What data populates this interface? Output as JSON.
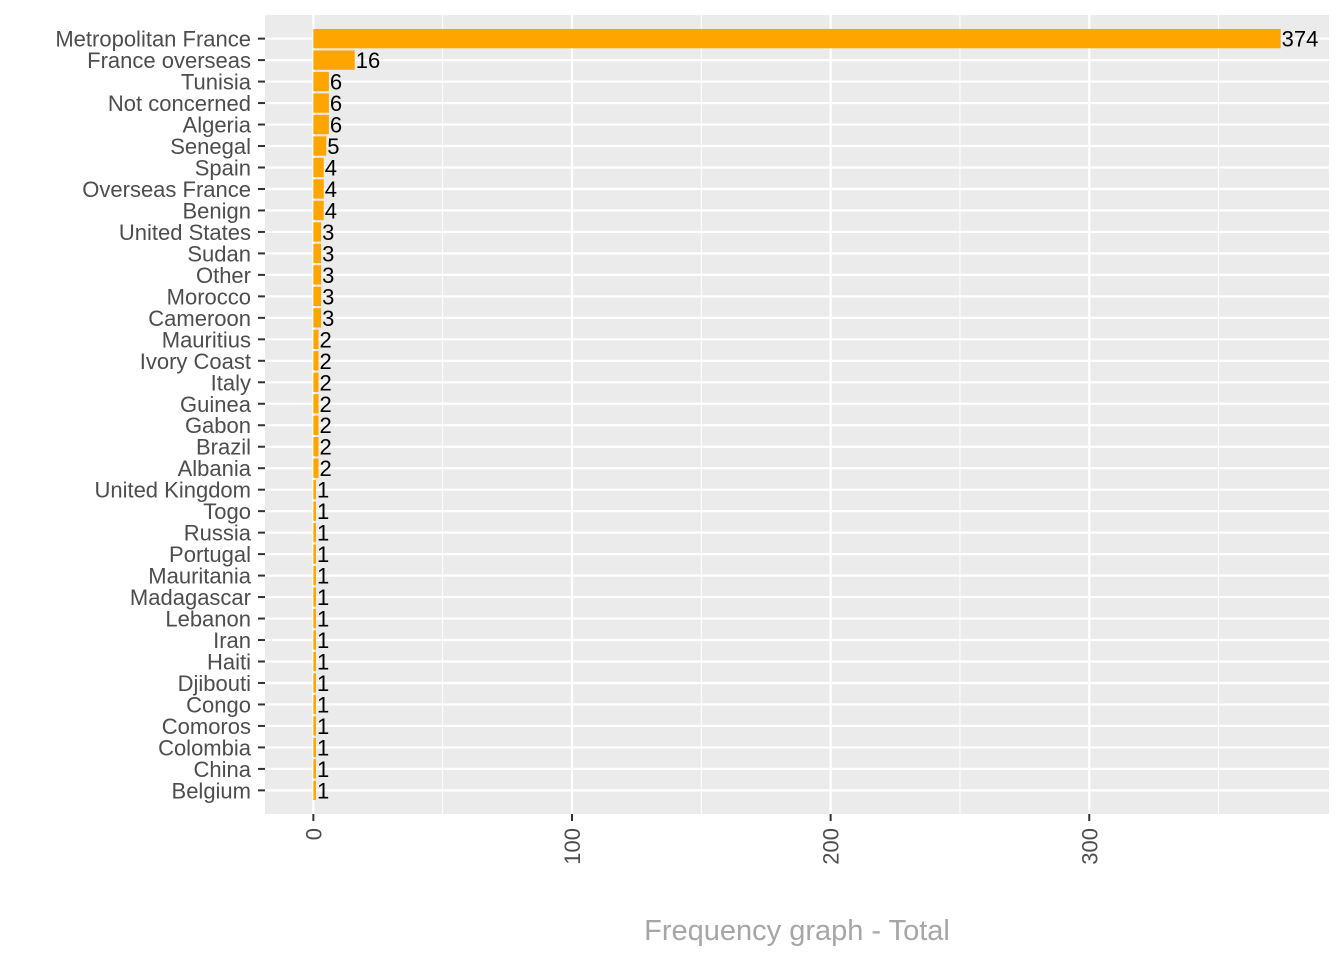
{
  "chart_data": {
    "type": "bar",
    "orientation": "horizontal",
    "title": "",
    "xlabel": "Frequency graph - Total",
    "ylabel": "",
    "categories": [
      "Metropolitan France",
      "France overseas",
      "Tunisia",
      "Not concerned",
      "Algeria",
      "Senegal",
      "Spain",
      "Overseas France",
      "Benign",
      "United States",
      "Sudan",
      "Other",
      "Morocco",
      "Cameroon",
      "Mauritius",
      "Ivory Coast",
      "Italy",
      "Guinea",
      "Gabon",
      "Brazil",
      "Albania",
      "United Kingdom",
      "Togo",
      "Russia",
      "Portugal",
      "Mauritania",
      "Madagascar",
      "Lebanon",
      "Iran",
      "Haiti",
      "Djibouti",
      "Congo",
      "Comoros",
      "Colombia",
      "China",
      "Belgium"
    ],
    "values": [
      374,
      16,
      6,
      6,
      6,
      5,
      4,
      4,
      4,
      3,
      3,
      3,
      3,
      3,
      2,
      2,
      2,
      2,
      2,
      2,
      2,
      1,
      1,
      1,
      1,
      1,
      1,
      1,
      1,
      1,
      1,
      1,
      1,
      1,
      1,
      1
    ],
    "data_labels": [
      "374",
      "16",
      "6",
      "6",
      "6",
      "5",
      "4",
      "4",
      "4",
      "3",
      "3",
      "3",
      "3",
      "3",
      "2",
      "2",
      "2",
      "2",
      "2",
      "2",
      "2",
      "1",
      "1",
      "1",
      "1",
      "1",
      "1",
      "1",
      "1",
      "1",
      "1",
      "1",
      "1",
      "1",
      "1",
      "1"
    ],
    "xlim": [
      -18.7,
      392.7
    ],
    "xticks": [
      0,
      100,
      200,
      300
    ],
    "xtick_labels": [
      "0",
      "100",
      "200",
      "300"
    ],
    "x_minor_ticks": [
      50,
      150,
      250,
      350
    ],
    "grid": true,
    "legend": "none",
    "colors": {
      "bar": "#FFA500",
      "panel": "#EBEBEB",
      "grid": "#FFFFFF",
      "axis_text": "#4D4D4D",
      "data_label": "#000000",
      "xlabel": "#A6A6A6"
    }
  }
}
